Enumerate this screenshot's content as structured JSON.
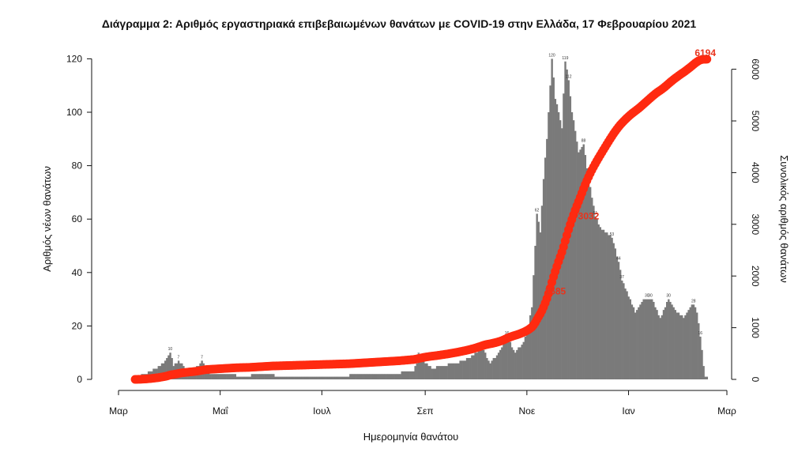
{
  "chart_data": {
    "type": "bar+line",
    "title": "Διάγραμμα 2: Αριθμός εργαστηριακά επιβεβαιωμένων θανάτων με COVID-19 στην Ελλάδα, 17 Φεβρουαρίου 2021",
    "xlabel": "Ημερομηνία θανάτου",
    "ylabel_left": "Αριθμός νέων θανάτων",
    "ylabel_right": "Συνολικός αριθμός θανάτων",
    "x_ticks": [
      "Μαρ",
      "Μαΐ",
      "Ιουλ",
      "Σεπ",
      "Νοε",
      "Ιαν",
      "Μαρ"
    ],
    "ylim_left": [
      0,
      120
    ],
    "yticks_left": [
      0,
      20,
      40,
      60,
      80,
      100,
      120
    ],
    "ylim_right": [
      0,
      6200
    ],
    "yticks_right": [
      0,
      1000,
      2000,
      3000,
      4000,
      5000,
      6000
    ],
    "colors": {
      "bars": "#7a7a7a",
      "cumulative": "#ff2a10",
      "cumulative_label": "#e8331c"
    },
    "daily_anchors": [
      [
        "2020-03-01",
        0
      ],
      [
        "2020-03-10",
        0
      ],
      [
        "2020-03-13",
        1
      ],
      [
        "2020-03-17",
        2
      ],
      [
        "2020-03-20",
        3
      ],
      [
        "2020-03-23",
        4
      ],
      [
        "2020-03-28",
        6
      ],
      [
        "2020-04-01",
        10
      ],
      [
        "2020-04-03",
        5
      ],
      [
        "2020-04-06",
        7
      ],
      [
        "2020-04-10",
        4
      ],
      [
        "2020-04-15",
        3
      ],
      [
        "2020-04-20",
        7
      ],
      [
        "2020-04-25",
        2
      ],
      [
        "2020-05-05",
        2
      ],
      [
        "2020-05-15",
        1
      ],
      [
        "2020-05-25",
        2
      ],
      [
        "2020-06-10",
        1
      ],
      [
        "2020-06-25",
        1
      ],
      [
        "2020-07-10",
        1
      ],
      [
        "2020-07-25",
        2
      ],
      [
        "2020-08-10",
        2
      ],
      [
        "2020-08-25",
        3
      ],
      [
        "2020-08-28",
        8
      ],
      [
        "2020-09-05",
        4
      ],
      [
        "2020-09-10",
        5
      ],
      [
        "2020-09-20",
        6
      ],
      [
        "2020-09-28",
        8
      ],
      [
        "2020-10-05",
        12
      ],
      [
        "2020-10-10",
        6
      ],
      [
        "2020-10-15",
        10
      ],
      [
        "2020-10-20",
        16
      ],
      [
        "2020-10-25",
        10
      ],
      [
        "2020-10-30",
        14
      ],
      [
        "2020-11-02",
        20
      ],
      [
        "2020-11-04",
        27
      ],
      [
        "2020-11-06",
        50
      ],
      [
        "2020-11-07",
        62
      ],
      [
        "2020-11-09",
        55
      ],
      [
        "2020-11-11",
        75
      ],
      [
        "2020-11-13",
        90
      ],
      [
        "2020-11-15",
        110
      ],
      [
        "2020-11-16",
        120
      ],
      [
        "2020-11-18",
        105
      ],
      [
        "2020-11-20",
        100
      ],
      [
        "2020-11-22",
        94
      ],
      [
        "2020-11-24",
        119
      ],
      [
        "2020-11-26",
        112
      ],
      [
        "2020-11-28",
        100
      ],
      [
        "2020-11-30",
        93
      ],
      [
        "2020-12-02",
        85
      ],
      [
        "2020-12-05",
        88
      ],
      [
        "2020-12-08",
        75
      ],
      [
        "2020-12-12",
        61
      ],
      [
        "2020-12-15",
        57
      ],
      [
        "2020-12-18",
        55
      ],
      [
        "2020-12-22",
        53
      ],
      [
        "2020-12-26",
        44
      ],
      [
        "2020-12-28",
        37
      ],
      [
        "2021-01-02",
        30
      ],
      [
        "2021-01-05",
        25
      ],
      [
        "2021-01-10",
        30
      ],
      [
        "2021-01-15",
        30
      ],
      [
        "2021-01-20",
        23
      ],
      [
        "2021-01-25",
        30
      ],
      [
        "2021-01-30",
        25
      ],
      [
        "2021-02-03",
        23
      ],
      [
        "2021-02-07",
        27
      ],
      [
        "2021-02-09",
        28
      ],
      [
        "2021-02-11",
        25
      ],
      [
        "2021-02-13",
        16
      ],
      [
        "2021-02-15",
        5
      ],
      [
        "2021-02-16",
        1
      ]
    ],
    "bar_labels": [
      [
        "2020-04-01",
        "10"
      ],
      [
        "2020-04-06",
        "7"
      ],
      [
        "2020-04-20",
        "7"
      ],
      [
        "2020-08-28",
        "8"
      ],
      [
        "2020-10-05",
        "12"
      ],
      [
        "2020-10-20",
        "16"
      ],
      [
        "2020-11-07",
        "62"
      ],
      [
        "2020-11-16",
        "120"
      ],
      [
        "2020-11-24",
        "119"
      ],
      [
        "2020-11-26",
        "112"
      ],
      [
        "2020-12-05",
        "88"
      ],
      [
        "2020-12-12",
        "61"
      ],
      [
        "2020-12-22",
        "53"
      ],
      [
        "2020-12-26",
        "44"
      ],
      [
        "2020-12-28",
        "37"
      ],
      [
        "2021-01-12",
        "30"
      ],
      [
        "2021-01-14",
        "30"
      ],
      [
        "2021-01-25",
        "30"
      ],
      [
        "2021-02-09",
        "28"
      ],
      [
        "2021-02-13",
        "16"
      ]
    ],
    "cumulative_annotations": [
      [
        "2020-11-19",
        "1585"
      ],
      [
        "2020-12-09",
        "3032"
      ],
      [
        "2021-02-17",
        "6194"
      ]
    ]
  }
}
